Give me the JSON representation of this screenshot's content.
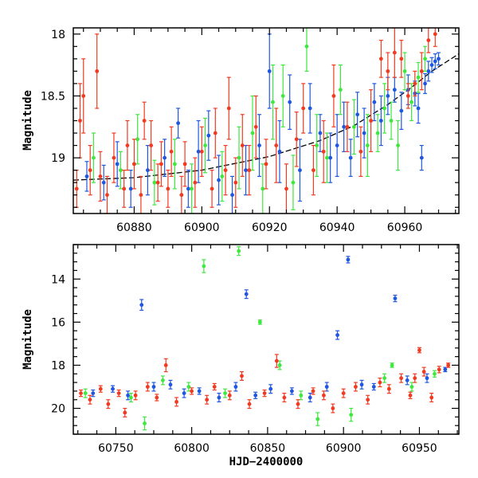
{
  "chart_data": [
    {
      "type": "scatter",
      "panel": "top",
      "title": "",
      "xlabel": "",
      "ylabel": "Magnitude",
      "xlim": [
        60862,
        60976
      ],
      "ylim": [
        19.45,
        17.95
      ],
      "y_inverted": true,
      "xticks": [
        60880,
        60900,
        60920,
        60940,
        60960
      ],
      "yticks": [
        18,
        18.5,
        19
      ],
      "grid": false,
      "series": [
        {
          "name": "blue",
          "color": "#1f57e0",
          "points": [
            [
              60866,
              19.15,
              0.12
            ],
            [
              60871,
              19.2,
              0.14
            ],
            [
              60875,
              19.05,
              0.18
            ],
            [
              60879,
              19.25,
              0.15
            ],
            [
              60884,
              19.1,
              0.2
            ],
            [
              60889,
              19.0,
              0.15
            ],
            [
              60893,
              18.72,
              0.12
            ],
            [
              60896,
              19.25,
              0.15
            ],
            [
              60899,
              18.95,
              0.25
            ],
            [
              60902,
              18.82,
              0.2
            ],
            [
              60905,
              19.18,
              0.2
            ],
            [
              60909,
              19.3,
              0.15
            ],
            [
              60913,
              19.1,
              0.2
            ],
            [
              60917,
              18.9,
              0.25
            ],
            [
              60920,
              18.3,
              0.3
            ],
            [
              60923,
              18.95,
              0.25
            ],
            [
              60926,
              18.55,
              0.22
            ],
            [
              60929,
              19.1,
              0.25
            ],
            [
              60932,
              18.6,
              0.2
            ],
            [
              60935,
              18.8,
              0.15
            ],
            [
              60938,
              19.0,
              0.2
            ],
            [
              60940,
              18.9,
              0.25
            ],
            [
              60942,
              18.75,
              0.2
            ],
            [
              60944,
              19.0,
              0.15
            ],
            [
              60946,
              18.65,
              0.18
            ],
            [
              60948,
              18.8,
              0.2
            ],
            [
              60951,
              18.55,
              0.15
            ],
            [
              60953,
              18.7,
              0.2
            ],
            [
              60955,
              18.5,
              0.15
            ],
            [
              60957,
              18.45,
              0.1
            ],
            [
              60959,
              18.62,
              0.15
            ],
            [
              60961,
              18.45,
              0.12
            ],
            [
              60963,
              18.48,
              0.1
            ],
            [
              60964,
              18.6,
              0.12
            ],
            [
              60965,
              19.0,
              0.1
            ],
            [
              60966,
              18.4,
              0.08
            ],
            [
              60967,
              18.3,
              0.08
            ],
            [
              60968,
              18.25,
              0.06
            ],
            [
              60969,
              18.22,
              0.06
            ],
            [
              60970,
              18.2,
              0.05
            ]
          ]
        },
        {
          "name": "green",
          "color": "#3ee83e",
          "points": [
            [
              60868,
              19.0,
              0.2
            ],
            [
              60876,
              19.1,
              0.15
            ],
            [
              60881,
              18.85,
              0.2
            ],
            [
              60886,
              19.2,
              0.18
            ],
            [
              60892,
              19.05,
              0.2
            ],
            [
              60897,
              19.25,
              0.2
            ],
            [
              60901,
              18.9,
              0.22
            ],
            [
              60906,
              19.15,
              0.2
            ],
            [
              60911,
              19.0,
              0.25
            ],
            [
              60915,
              18.8,
              0.3
            ],
            [
              60918,
              19.25,
              0.2
            ],
            [
              60921,
              18.55,
              0.3
            ],
            [
              60924,
              18.5,
              0.25
            ],
            [
              60927,
              19.2,
              0.22
            ],
            [
              60931,
              18.1,
              0.2
            ],
            [
              60934,
              18.9,
              0.25
            ],
            [
              60937,
              19.0,
              0.2
            ],
            [
              60941,
              18.45,
              0.2
            ],
            [
              60945,
              18.75,
              0.22
            ],
            [
              60949,
              18.9,
              0.25
            ],
            [
              60952,
              18.8,
              0.15
            ],
            [
              60954,
              18.6,
              0.2
            ],
            [
              60956,
              18.7,
              0.15
            ],
            [
              60958,
              18.9,
              0.2
            ],
            [
              60960,
              18.3,
              0.15
            ],
            [
              60962,
              18.55,
              0.15
            ],
            [
              60964,
              18.35,
              0.12
            ],
            [
              60966,
              18.2,
              0.1
            ]
          ]
        },
        {
          "name": "red",
          "color": "#f23a20",
          "points": [
            [
              60863,
              19.25,
              0.15
            ],
            [
              60864,
              18.7,
              0.3
            ],
            [
              60865,
              18.5,
              0.3
            ],
            [
              60867,
              19.1,
              0.2
            ],
            [
              60869,
              18.3,
              0.3
            ],
            [
              60870,
              19.15,
              0.2
            ],
            [
              60872,
              19.3,
              0.15
            ],
            [
              60874,
              19.0,
              0.2
            ],
            [
              60877,
              19.25,
              0.15
            ],
            [
              60878,
              18.9,
              0.2
            ],
            [
              60880,
              19.05,
              0.2
            ],
            [
              60882,
              19.3,
              0.15
            ],
            [
              60883,
              18.7,
              0.15
            ],
            [
              60885,
              18.9,
              0.2
            ],
            [
              60887,
              19.2,
              0.15
            ],
            [
              60888,
              19.05,
              0.18
            ],
            [
              60890,
              19.25,
              0.15
            ],
            [
              60891,
              18.95,
              0.2
            ],
            [
              60894,
              19.3,
              0.15
            ],
            [
              60895,
              19.05,
              0.18
            ],
            [
              60898,
              19.2,
              0.2
            ],
            [
              60900,
              18.95,
              0.2
            ],
            [
              60903,
              19.25,
              0.15
            ],
            [
              60904,
              18.8,
              0.2
            ],
            [
              60907,
              19.1,
              0.2
            ],
            [
              60908,
              18.6,
              0.25
            ],
            [
              60910,
              19.2,
              0.2
            ],
            [
              60912,
              18.9,
              0.25
            ],
            [
              60914,
              19.1,
              0.2
            ],
            [
              60916,
              18.75,
              0.25
            ],
            [
              60919,
              19.05,
              0.2
            ],
            [
              60922,
              18.9,
              0.3
            ],
            [
              60925,
              19.25,
              0.2
            ],
            [
              60928,
              18.85,
              0.22
            ],
            [
              60930,
              18.6,
              0.2
            ],
            [
              60933,
              19.1,
              0.2
            ],
            [
              60936,
              18.95,
              0.25
            ],
            [
              60939,
              18.5,
              0.25
            ],
            [
              60943,
              18.75,
              0.2
            ],
            [
              60947,
              18.95,
              0.2
            ],
            [
              60950,
              18.7,
              0.25
            ],
            [
              60953,
              18.2,
              0.15
            ],
            [
              60955,
              18.3,
              0.15
            ],
            [
              60957,
              18.15,
              0.2
            ],
            [
              60959,
              18.2,
              0.15
            ],
            [
              60961,
              18.5,
              0.1
            ],
            [
              60963,
              18.4,
              0.1
            ],
            [
              60965,
              18.3,
              0.15
            ],
            [
              60967,
              18.05,
              0.1
            ],
            [
              60969,
              18.0,
              0.1
            ]
          ]
        }
      ],
      "model_curve": {
        "x": [
          60862,
          60880,
          60900,
          60920,
          60935,
          60945,
          60955,
          60962,
          60968,
          60976
        ],
        "y": [
          19.18,
          19.16,
          19.1,
          18.99,
          18.86,
          18.74,
          18.57,
          18.43,
          18.3,
          18.16
        ],
        "style": "dashed",
        "color": "#000000"
      }
    },
    {
      "type": "scatter",
      "panel": "bottom",
      "title": "",
      "xlabel": "HJD−2400000",
      "ylabel": "Magnitude",
      "xlim": [
        60722,
        60976
      ],
      "ylim": [
        21.2,
        12.4
      ],
      "y_inverted": true,
      "xticks": [
        60750,
        60800,
        60850,
        60900,
        60950
      ],
      "yticks": [
        14,
        16,
        18,
        20
      ],
      "grid": false,
      "series": [
        {
          "name": "blue",
          "color": "#1f57e0",
          "points": [
            [
              60735,
              19.3,
              0.15
            ],
            [
              60748,
              19.1,
              0.15
            ],
            [
              60758,
              19.4,
              0.2
            ],
            [
              60767,
              15.2,
              0.25
            ],
            [
              60775,
              19.0,
              0.2
            ],
            [
              60786,
              18.9,
              0.2
            ],
            [
              60795,
              19.3,
              0.2
            ],
            [
              60805,
              19.2,
              0.15
            ],
            [
              60818,
              19.5,
              0.2
            ],
            [
              60829,
              19.0,
              0.2
            ],
            [
              60836,
              14.7,
              0.2
            ],
            [
              60842,
              19.4,
              0.15
            ],
            [
              60852,
              19.1,
              0.2
            ],
            [
              60866,
              19.2,
              0.15
            ],
            [
              60878,
              19.5,
              0.2
            ],
            [
              60889,
              19.0,
              0.2
            ],
            [
              60896,
              16.6,
              0.2
            ],
            [
              60903,
              13.1,
              0.15
            ],
            [
              60912,
              18.9,
              0.2
            ],
            [
              60920,
              19.0,
              0.15
            ],
            [
              60934,
              14.9,
              0.15
            ],
            [
              60942,
              18.7,
              0.2
            ],
            [
              60955,
              18.6,
              0.2
            ],
            [
              60967,
              18.2,
              0.1
            ]
          ]
        },
        {
          "name": "green",
          "color": "#3ee83e",
          "points": [
            [
              60730,
              19.3,
              0.2
            ],
            [
              60760,
              19.5,
              0.2
            ],
            [
              60769,
              20.7,
              0.3
            ],
            [
              60781,
              18.7,
              0.2
            ],
            [
              60798,
              19.0,
              0.2
            ],
            [
              60808,
              13.4,
              0.3
            ],
            [
              60822,
              19.3,
              0.2
            ],
            [
              60831,
              12.7,
              0.2
            ],
            [
              60845,
              16.0,
              0.1
            ],
            [
              60858,
              18.0,
              0.2
            ],
            [
              60872,
              19.4,
              0.2
            ],
            [
              60883,
              20.5,
              0.3
            ],
            [
              60905,
              20.3,
              0.3
            ],
            [
              60927,
              18.6,
              0.2
            ],
            [
              60932,
              18.0,
              0.1
            ],
            [
              60945,
              19.0,
              0.2
            ],
            [
              60960,
              18.4,
              0.15
            ]
          ]
        },
        {
          "name": "red",
          "color": "#f23a20",
          "points": [
            [
              60727,
              19.3,
              0.15
            ],
            [
              60733,
              19.6,
              0.2
            ],
            [
              60740,
              19.1,
              0.15
            ],
            [
              60745,
              19.8,
              0.2
            ],
            [
              60752,
              19.3,
              0.15
            ],
            [
              60756,
              20.2,
              0.2
            ],
            [
              60763,
              19.4,
              0.2
            ],
            [
              60771,
              19.0,
              0.2
            ],
            [
              60777,
              19.5,
              0.15
            ],
            [
              60783,
              18.0,
              0.3
            ],
            [
              60790,
              19.7,
              0.2
            ],
            [
              60800,
              19.2,
              0.15
            ],
            [
              60810,
              19.6,
              0.2
            ],
            [
              60815,
              19.0,
              0.15
            ],
            [
              60825,
              19.4,
              0.2
            ],
            [
              60833,
              18.5,
              0.2
            ],
            [
              60838,
              19.8,
              0.2
            ],
            [
              60848,
              19.3,
              0.15
            ],
            [
              60856,
              17.8,
              0.3
            ],
            [
              60861,
              19.5,
              0.2
            ],
            [
              60870,
              19.8,
              0.2
            ],
            [
              60880,
              19.2,
              0.15
            ],
            [
              60887,
              19.4,
              0.2
            ],
            [
              60893,
              20.0,
              0.2
            ],
            [
              60900,
              19.3,
              0.2
            ],
            [
              60908,
              19.0,
              0.2
            ],
            [
              60916,
              19.6,
              0.2
            ],
            [
              60924,
              18.8,
              0.2
            ],
            [
              60930,
              19.1,
              0.2
            ],
            [
              60938,
              18.6,
              0.2
            ],
            [
              60944,
              19.4,
              0.15
            ],
            [
              60947,
              18.6,
              0.2
            ],
            [
              60950,
              17.3,
              0.12
            ],
            [
              60953,
              18.3,
              0.2
            ],
            [
              60958,
              19.5,
              0.2
            ],
            [
              60963,
              18.2,
              0.15
            ],
            [
              60969,
              18.0,
              0.1
            ]
          ]
        }
      ]
    }
  ]
}
